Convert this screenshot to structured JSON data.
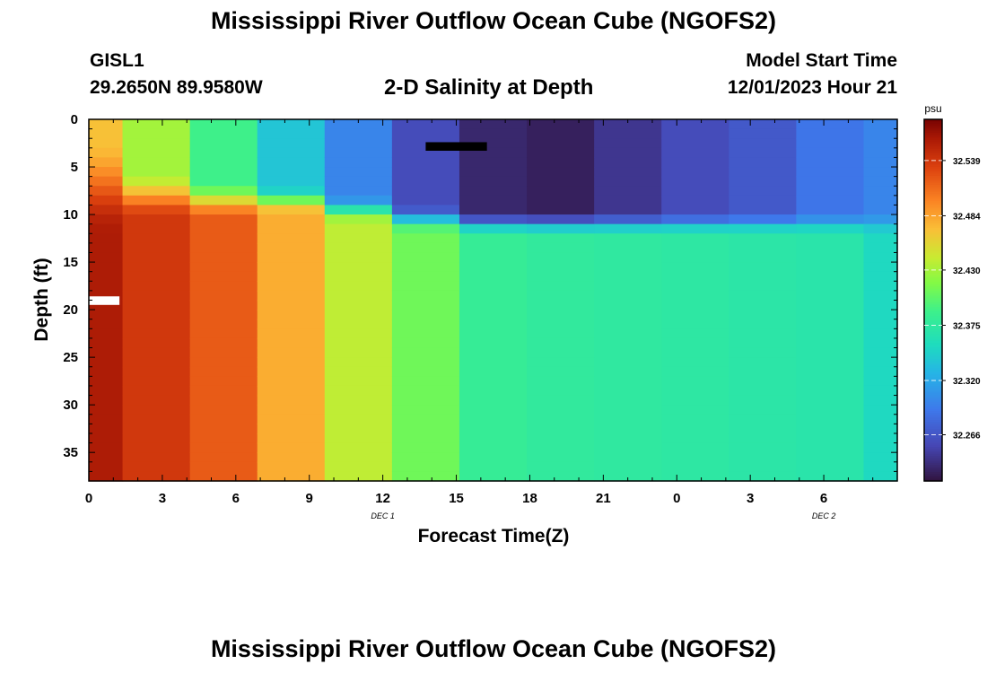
{
  "header": {
    "title": "Mississippi River Outflow Ocean Cube (NGOFS2)",
    "station_id": "GISL1",
    "station_coords": "29.2650N  89.9580W",
    "subtitle": "2-D Salinity at Depth",
    "model_start_label": "Model Start Time",
    "model_start_value": "12/01/2023 Hour 21"
  },
  "footer": {
    "title": "Mississippi River Outflow Ocean Cube (NGOFS2)"
  },
  "chart_data": {
    "type": "heatmap",
    "title": "2-D Salinity at Depth",
    "xlabel": "Forecast Time(Z)",
    "ylabel": "Depth (ft)",
    "x_ticks": [
      "0",
      "3",
      "6",
      "9",
      "12",
      "15",
      "18",
      "21",
      "0",
      "3",
      "6"
    ],
    "x_range_hours": [
      0,
      33
    ],
    "date_labels": [
      {
        "text": "DEC 1",
        "at_hour": 12
      },
      {
        "text": "DEC 2",
        "at_hour": 30
      }
    ],
    "y_ticks": [
      0,
      5,
      10,
      15,
      20,
      25,
      30,
      35
    ],
    "y_range": [
      0,
      38
    ],
    "y_inverted": true,
    "colorbar": {
      "unit": "psu",
      "min": 32.22,
      "max": 32.58,
      "tick_values": [
        32.539,
        32.484,
        32.43,
        32.375,
        32.32,
        32.266
      ],
      "tick_labels": [
        "32.539",
        "32.484",
        "32.430",
        "32.375",
        "32.320",
        "32.266"
      ],
      "colormap": "turbo"
    },
    "column_times": [
      0,
      2.5,
      5.25,
      8,
      10.75,
      13.5,
      16.25,
      19,
      21.75,
      24.5,
      27.25,
      30,
      32.25
    ],
    "column_edges": [
      0,
      1.375,
      4.125,
      6.875,
      9.625,
      12.375,
      15.125,
      17.875,
      20.625,
      23.375,
      26.125,
      28.875,
      31.625,
      33
    ],
    "profiles": [
      {
        "top": 32.47,
        "bottom": 32.56,
        "transition_depth": 7,
        "transition_width": 10
      },
      {
        "top": 32.43,
        "bottom": 32.54,
        "transition_depth": 8,
        "transition_width": 5
      },
      {
        "top": 32.39,
        "bottom": 32.52,
        "transition_depth": 8.5,
        "transition_width": 4
      },
      {
        "top": 32.34,
        "bottom": 32.48,
        "transition_depth": 8.5,
        "transition_width": 3
      },
      {
        "top": 32.3,
        "bottom": 32.44,
        "transition_depth": 9.5,
        "transition_width": 3
      },
      {
        "top": 32.26,
        "bottom": 32.41,
        "transition_depth": 10.5,
        "transition_width": 3
      },
      {
        "top": 32.235,
        "bottom": 32.383,
        "transition_depth": 11,
        "transition_width": 2.5
      },
      {
        "top": 32.23,
        "bottom": 32.378,
        "transition_depth": 11,
        "transition_width": 2.5
      },
      {
        "top": 32.245,
        "bottom": 32.376,
        "transition_depth": 11,
        "transition_width": 2.5
      },
      {
        "top": 32.26,
        "bottom": 32.374,
        "transition_depth": 11,
        "transition_width": 2.5
      },
      {
        "top": 32.27,
        "bottom": 32.372,
        "transition_depth": 11,
        "transition_width": 2.5
      },
      {
        "top": 32.29,
        "bottom": 32.37,
        "transition_depth": 11,
        "transition_width": 2.5
      },
      {
        "top": 32.3,
        "bottom": 32.355,
        "transition_depth": 11,
        "transition_width": 2.5
      }
    ],
    "missing_value_marks": [
      {
        "hour_from": 0,
        "hour_to": 1.25,
        "depth_from": 18.6,
        "depth_to": 19.5,
        "color": "#ffffff"
      },
      {
        "hour_from": 13.75,
        "hour_to": 16.25,
        "depth_from": 2.4,
        "depth_to": 3.3,
        "color": "#000000"
      }
    ]
  }
}
